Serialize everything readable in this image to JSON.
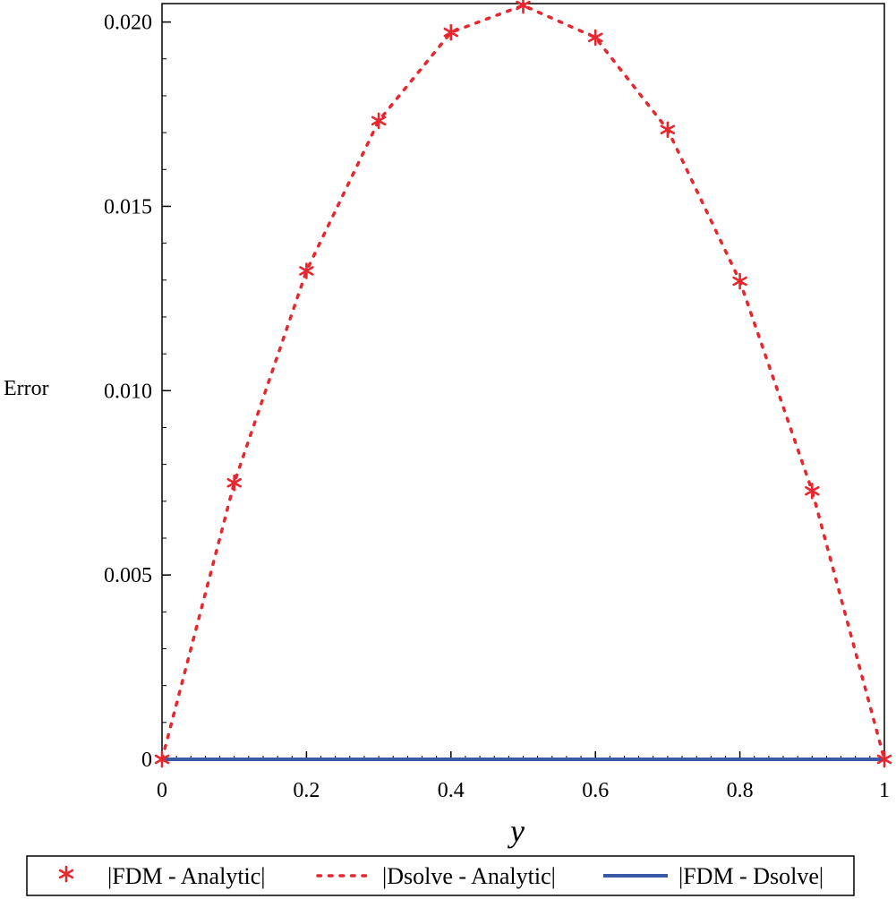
{
  "chart_data": {
    "type": "line",
    "xlabel": "y",
    "ylabel": "Error",
    "xlim": [
      0,
      1
    ],
    "ylim": [
      0,
      0.0205
    ],
    "x_ticks": [
      {
        "value": 0,
        "label": "0"
      },
      {
        "value": 0.2,
        "label": "0.2"
      },
      {
        "value": 0.4,
        "label": "0.4"
      },
      {
        "value": 0.6,
        "label": "0.6"
      },
      {
        "value": 0.8,
        "label": "0.8"
      },
      {
        "value": 1,
        "label": "1"
      }
    ],
    "y_ticks": [
      {
        "value": 0,
        "label": "0"
      },
      {
        "value": 0.005,
        "label": "0.005"
      },
      {
        "value": 0.01,
        "label": "0.010"
      },
      {
        "value": 0.015,
        "label": "0.015"
      },
      {
        "value": 0.02,
        "label": "0.020"
      }
    ],
    "grid": false,
    "legend_position": "bottom",
    "series": [
      {
        "name": "|FDM - Analytic|",
        "style": "star-markers",
        "color": "#e8262d",
        "x": [
          0,
          0.1,
          0.2,
          0.3,
          0.4,
          0.5,
          0.6,
          0.7,
          0.8,
          0.9,
          1.0
        ],
        "y": [
          0,
          0.0075,
          0.01325,
          0.01732,
          0.01972,
          0.02045,
          0.01958,
          0.01708,
          0.01297,
          0.00728,
          0
        ]
      },
      {
        "name": "|Dsolve - Analytic|",
        "style": "dotted-line",
        "color": "#e8262d",
        "x": [
          0,
          0.1,
          0.2,
          0.3,
          0.4,
          0.5,
          0.6,
          0.7,
          0.8,
          0.9,
          1.0
        ],
        "y": [
          0,
          0.0075,
          0.01325,
          0.01732,
          0.01972,
          0.02045,
          0.01958,
          0.01708,
          0.01297,
          0.00728,
          0
        ]
      },
      {
        "name": "|FDM - Dsolve|",
        "style": "solid-line",
        "color": "#3a5aa8",
        "x": [
          0,
          0.1,
          0.2,
          0.3,
          0.4,
          0.5,
          0.6,
          0.7,
          0.8,
          0.9,
          1.0
        ],
        "y": [
          0,
          0,
          0,
          0,
          0,
          0,
          0,
          0,
          0,
          0,
          0
        ]
      }
    ]
  }
}
